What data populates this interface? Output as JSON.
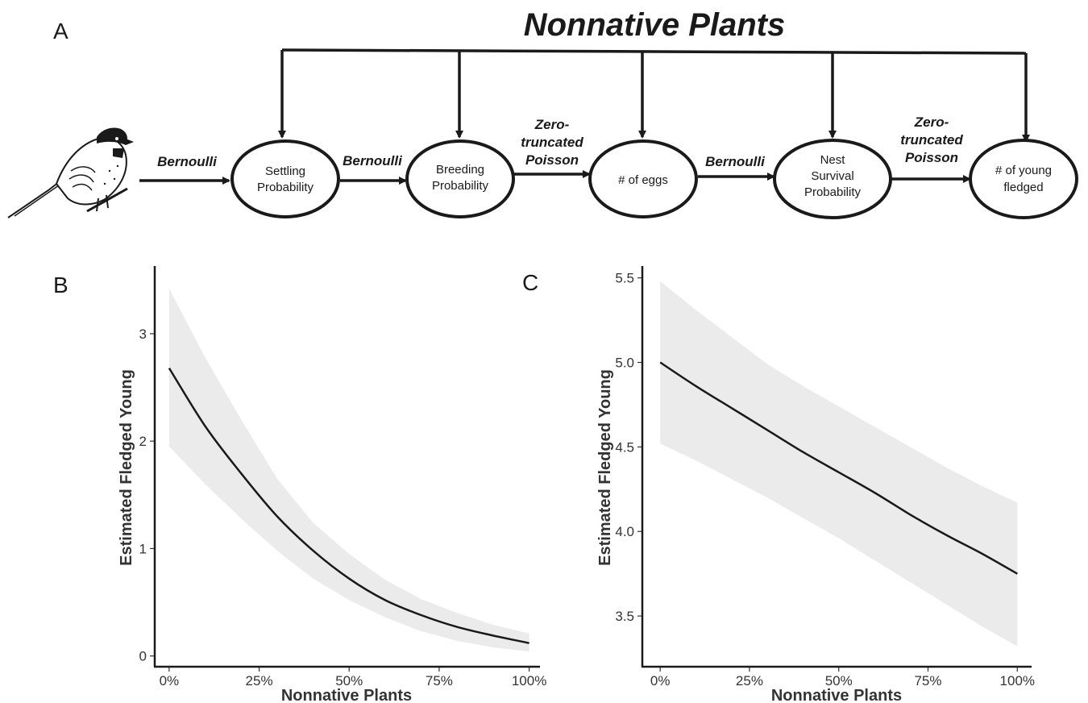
{
  "colors": {
    "ink": "#1a1a1a",
    "ribbon": "#ebebeb",
    "axis_text": "#333333"
  },
  "panel_a": {
    "letter": "A",
    "title": "Nonnative Plants",
    "bird_icon": "chickadee-illustration",
    "nodes": [
      {
        "lines": [
          "Settling",
          "Probability"
        ]
      },
      {
        "lines": [
          "Breeding",
          "Probability"
        ]
      },
      {
        "lines": [
          "# of eggs"
        ]
      },
      {
        "lines": [
          "Nest",
          "Survival",
          "Probability"
        ]
      },
      {
        "lines": [
          "# of young",
          "fledged"
        ]
      }
    ],
    "edges": [
      {
        "lines": [
          "Bernoulli"
        ]
      },
      {
        "lines": [
          "Bernoulli"
        ]
      },
      {
        "lines": [
          "Zero-",
          "truncated",
          "Poisson"
        ]
      },
      {
        "lines": [
          "Bernoulli"
        ]
      },
      {
        "lines": [
          "Zero-",
          "truncated",
          "Poisson"
        ]
      }
    ]
  },
  "chart_data": [
    {
      "letter": "B",
      "type": "line",
      "xlabel": "Nonnative Plants",
      "ylabel": "Estimated Fledged Young",
      "xlim": [
        -0.04,
        1.03
      ],
      "ylim": [
        -0.1,
        3.63
      ],
      "x_ticks": [
        0,
        0.25,
        0.5,
        0.75,
        1.0
      ],
      "x_tick_labels": [
        "0%",
        "25%",
        "50%",
        "75%",
        "100%"
      ],
      "y_ticks": [
        0,
        1,
        2,
        3
      ],
      "y_tick_labels": [
        "0",
        "1",
        "2",
        "3"
      ],
      "grid": false,
      "series": [
        {
          "x": [
            0,
            0.1,
            0.2,
            0.3,
            0.4,
            0.5,
            0.6,
            0.7,
            0.8,
            0.9,
            1.0
          ],
          "y": [
            2.68,
            2.14,
            1.7,
            1.3,
            0.98,
            0.72,
            0.52,
            0.38,
            0.27,
            0.19,
            0.12
          ],
          "lower": [
            1.95,
            1.6,
            1.28,
            0.98,
            0.72,
            0.52,
            0.36,
            0.23,
            0.14,
            0.08,
            0.04
          ],
          "upper": [
            3.42,
            2.78,
            2.2,
            1.65,
            1.24,
            0.95,
            0.71,
            0.53,
            0.4,
            0.29,
            0.21
          ]
        }
      ]
    },
    {
      "letter": "C",
      "type": "line",
      "xlabel": "Nonnative Plants",
      "ylabel": "Estimated Fledged Young",
      "xlim": [
        -0.05,
        1.04
      ],
      "ylim": [
        3.2,
        5.57
      ],
      "x_ticks": [
        0,
        0.25,
        0.5,
        0.75,
        1.0
      ],
      "x_tick_labels": [
        "0%",
        "25%",
        "50%",
        "75%",
        "100%"
      ],
      "y_ticks": [
        3.5,
        4.0,
        4.5,
        5.0,
        5.5
      ],
      "y_tick_labels": [
        "3.5",
        "4.0",
        "4.5",
        "5.0",
        "5.5"
      ],
      "grid": false,
      "series": [
        {
          "x": [
            0,
            0.1,
            0.2,
            0.3,
            0.4,
            0.5,
            0.6,
            0.7,
            0.8,
            0.9,
            1.0
          ],
          "y": [
            5.0,
            4.86,
            4.73,
            4.6,
            4.47,
            4.35,
            4.23,
            4.1,
            3.98,
            3.87,
            3.75
          ],
          "lower": [
            4.52,
            4.42,
            4.31,
            4.2,
            4.08,
            3.96,
            3.83,
            3.7,
            3.57,
            3.44,
            3.32
          ],
          "upper": [
            5.48,
            5.31,
            5.15,
            4.99,
            4.86,
            4.74,
            4.62,
            4.5,
            4.38,
            4.27,
            4.17
          ]
        }
      ]
    }
  ]
}
